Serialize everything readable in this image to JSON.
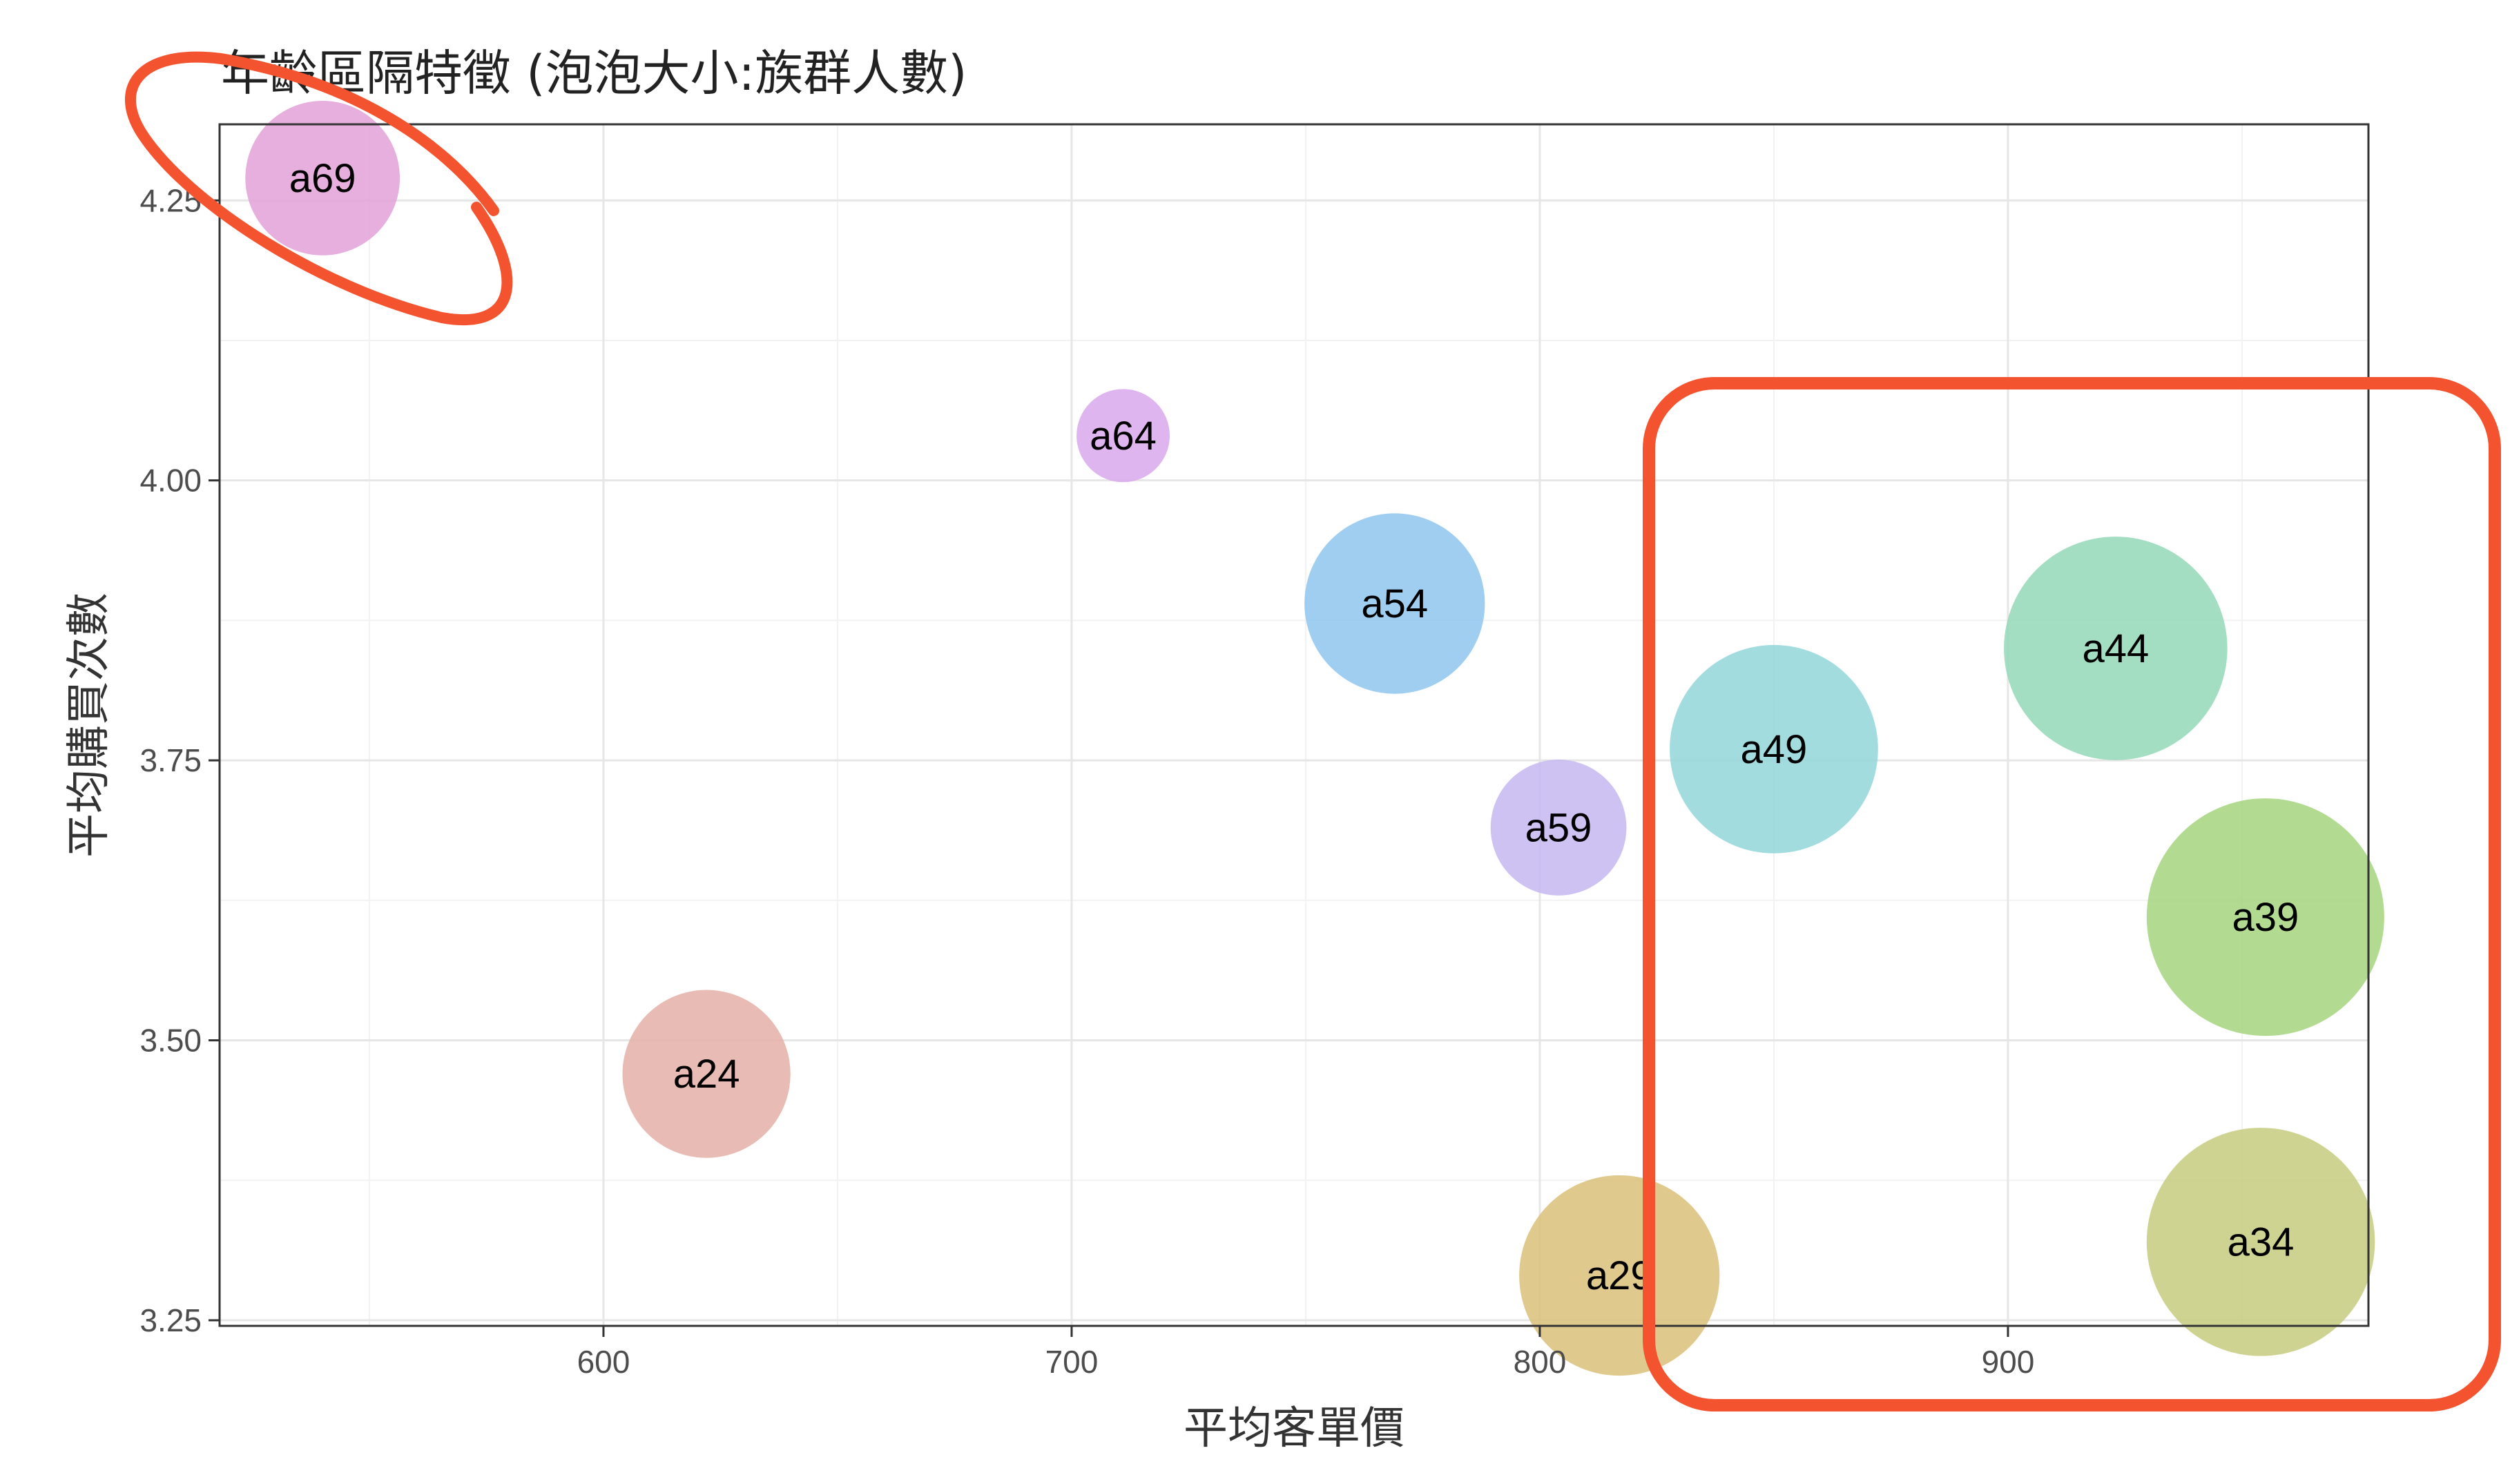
{
  "chart_data": {
    "type": "scatter",
    "title": "年齡區隔特徵 (泡泡大小:族群人數)",
    "xlabel": "平均客單價",
    "ylabel": "平均購買次數",
    "xlim": [
      518,
      977
    ],
    "ylim": [
      3.245,
      4.318
    ],
    "xticks": [
      600,
      700,
      800,
      900
    ],
    "xtick_labels": [
      "600",
      "700",
      "800",
      "900"
    ],
    "yticks": [
      3.25,
      3.5,
      3.75,
      4.0,
      4.25
    ],
    "ytick_labels": [
      "3.25",
      "3.50",
      "3.75",
      "4.00",
      "4.25"
    ],
    "grid": true,
    "legend": "none",
    "points": [
      {
        "label": "a69",
        "x": 540,
        "y": 4.27,
        "size": 0.22,
        "color": "#e3a1d7"
      },
      {
        "label": "a64",
        "x": 711,
        "y": 4.04,
        "size": 0.08,
        "color": "#d9a8ec"
      },
      {
        "label": "a54",
        "x": 769,
        "y": 3.89,
        "size": 0.3,
        "color": "#8fc6ee"
      },
      {
        "label": "a59",
        "x": 804,
        "y": 3.69,
        "size": 0.17,
        "color": "#c6b7f1"
      },
      {
        "label": "a49",
        "x": 850,
        "y": 3.76,
        "size": 0.4,
        "color": "#92d6d9"
      },
      {
        "label": "a44",
        "x": 923,
        "y": 3.85,
        "size": 0.46,
        "color": "#93d7b7"
      },
      {
        "label": "a39",
        "x": 955,
        "y": 3.61,
        "size": 0.52,
        "color": "#a5d47d"
      },
      {
        "label": "a34",
        "x": 954,
        "y": 3.32,
        "size": 0.48,
        "color": "#c7cb7e"
      },
      {
        "label": "a29",
        "x": 817,
        "y": 3.29,
        "size": 0.37,
        "color": "#dbbf78"
      },
      {
        "label": "a24",
        "x": 622,
        "y": 3.47,
        "size": 0.26,
        "color": "#e4b0a8"
      }
    ]
  },
  "annotations": {
    "color": "#f4532f"
  }
}
